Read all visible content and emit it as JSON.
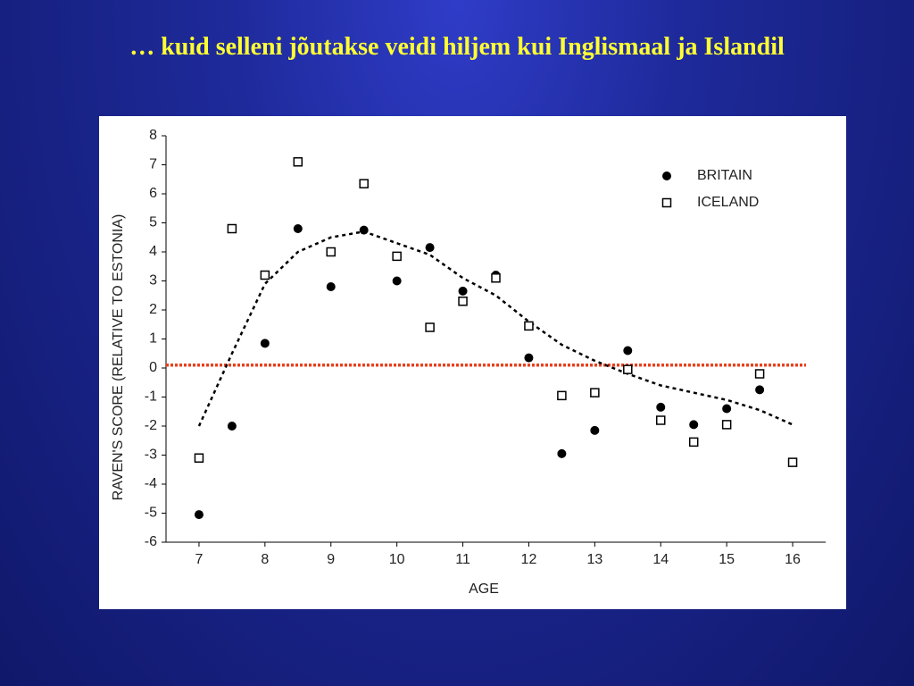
{
  "chart_data": {
    "type": "scatter",
    "title": "… kuid selleni jõutakse veidi hiljem kui Inglismaal ja Islandil",
    "x_label": "AGE",
    "y_label": "RAVEN'S SCORE (RELATIVE TO ESTONIA)",
    "xlim": [
      6.5,
      16.5
    ],
    "ylim": [
      -6,
      8
    ],
    "xticks": [
      7,
      8,
      9,
      10,
      11,
      12,
      13,
      14,
      15,
      16
    ],
    "yticks": [
      -6,
      -5,
      -4,
      -3,
      -2,
      -1,
      0,
      1,
      2,
      3,
      4,
      5,
      6,
      7,
      8
    ],
    "legend": "top-right",
    "series": [
      {
        "name": "BRITAIN",
        "color": "#000000",
        "marker": "circle",
        "x": [
          7,
          7.5,
          8,
          8.5,
          9,
          9.5,
          10,
          10.5,
          11,
          11.5,
          12,
          12.5,
          13,
          13.5,
          14,
          14.5,
          15,
          15.5
        ],
        "values": [
          -5.05,
          -2.0,
          0.85,
          4.8,
          2.8,
          4.75,
          3.0,
          4.15,
          2.65,
          3.2,
          0.35,
          -2.95,
          -2.15,
          0.6,
          -1.35,
          -1.95,
          -1.4,
          -0.75
        ]
      },
      {
        "name": "ICELAND",
        "color": "#000000",
        "marker": "square",
        "x": [
          7,
          7.5,
          8,
          8.5,
          9,
          9.5,
          10,
          10.5,
          11,
          11.5,
          12,
          12.5,
          13,
          13.5,
          14,
          14.5,
          15,
          15.5,
          16
        ],
        "values": [
          -3.1,
          4.8,
          3.2,
          7.1,
          4.0,
          6.35,
          3.85,
          1.4,
          2.3,
          3.1,
          1.45,
          -0.95,
          -0.85,
          -0.05,
          -1.8,
          -2.55,
          -1.95,
          -0.2,
          -3.25
        ]
      }
    ],
    "trend": {
      "color": "#000000",
      "x": [
        7,
        7.5,
        8,
        8.5,
        9,
        9.5,
        10,
        10.5,
        11,
        11.5,
        12,
        12.5,
        13,
        13.5,
        14,
        14.5,
        15,
        15.5,
        16
      ],
      "values": [
        -2.0,
        0.5,
        2.9,
        4.0,
        4.5,
        4.7,
        4.3,
        3.9,
        3.1,
        2.5,
        1.6,
        0.8,
        0.25,
        -0.2,
        -0.6,
        -0.85,
        -1.1,
        -1.45,
        -1.95
      ]
    },
    "reference_line": {
      "value": 0.1,
      "color": "#e8401c"
    }
  }
}
